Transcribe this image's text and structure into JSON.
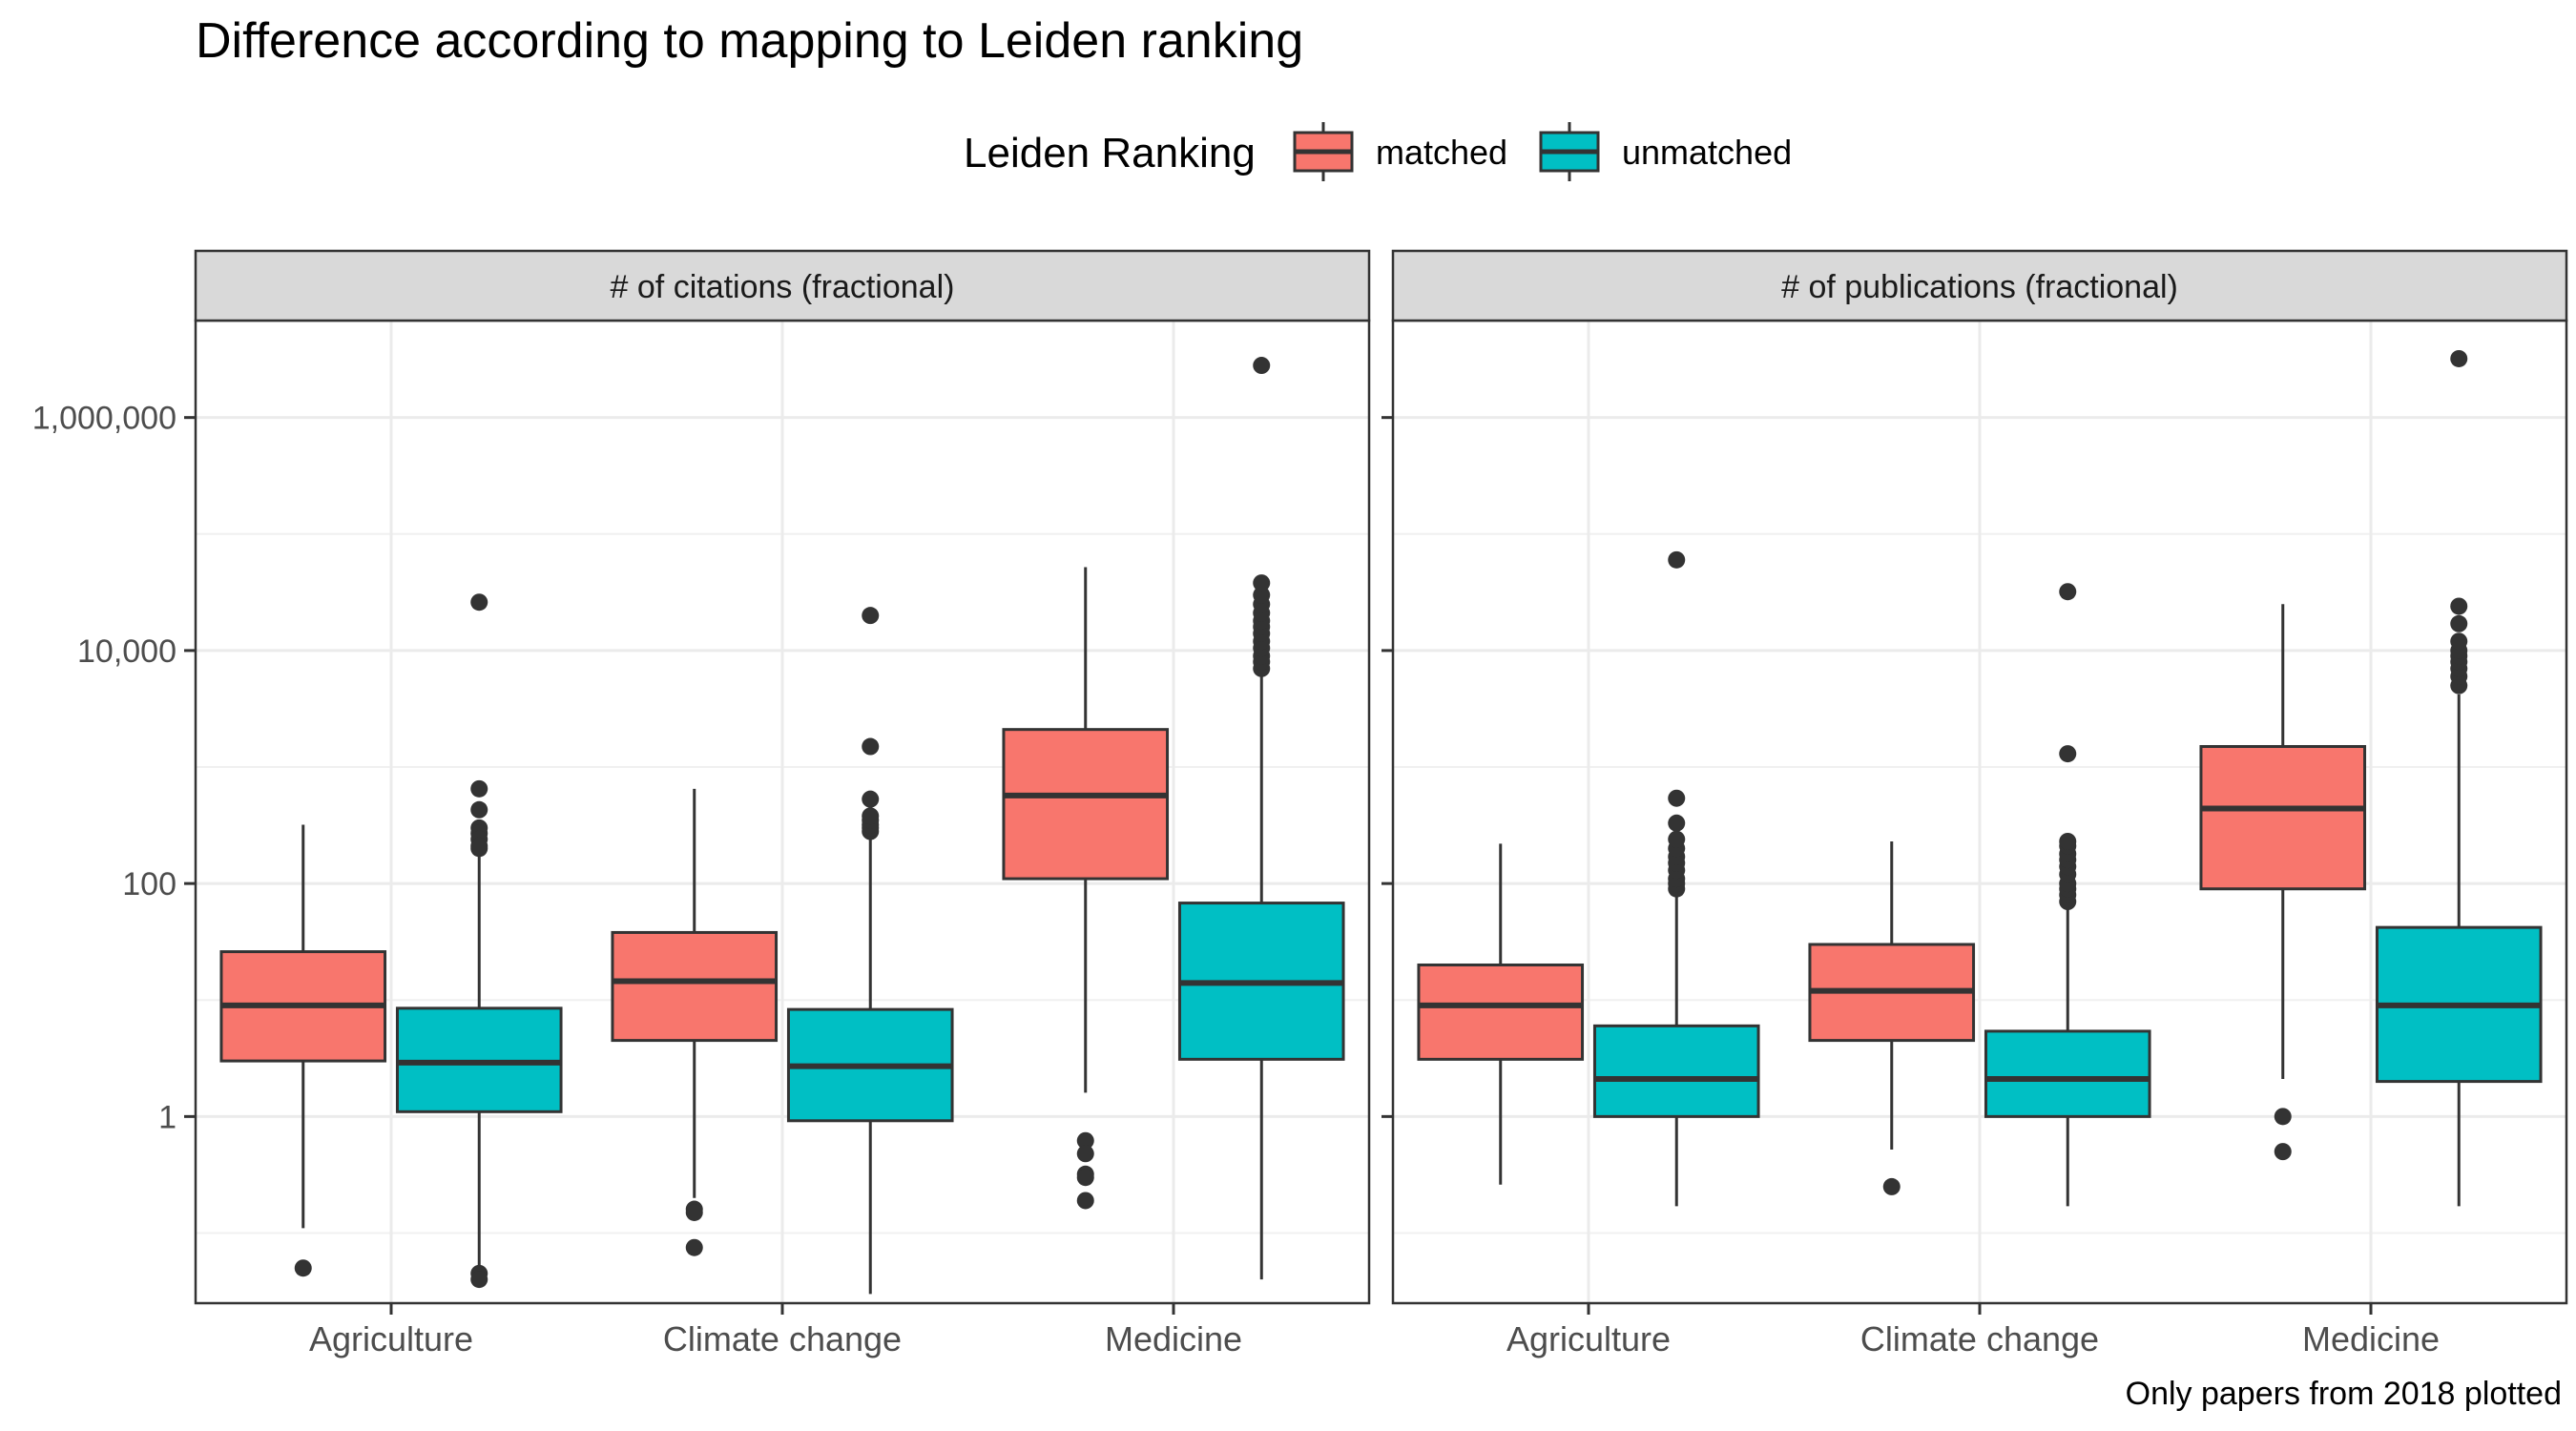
{
  "title": "Difference according to mapping to Leiden ranking",
  "caption": "Only papers from 2018 plotted",
  "legend": {
    "title": "Leiden Ranking",
    "items": [
      {
        "label": "matched",
        "color": "#F8766D"
      },
      {
        "label": "unmatched",
        "color": "#00BFC4"
      }
    ]
  },
  "chart_data": {
    "type": "boxplot",
    "y_scale": "log10",
    "y_ticks": [
      1,
      100,
      10000,
      1000000
    ],
    "y_tick_labels": [
      "1",
      "100",
      "10,000",
      "1,000,000"
    ],
    "y_range": [
      0.025,
      6800000
    ],
    "categories": [
      "Agriculture",
      "Climate change",
      "Medicine"
    ],
    "grid": true,
    "legend_position": "top",
    "facets": [
      {
        "title": "# of citations (fractional)",
        "series": [
          {
            "name": "matched",
            "boxes": [
              {
                "category": "Agriculture",
                "low": 0.11,
                "q1": 3,
                "median": 9,
                "q3": 26,
                "high": 320,
                "outliers": [
                  0.05
                ]
              },
              {
                "category": "Climate change",
                "low": 0.2,
                "q1": 4.5,
                "median": 14.5,
                "q3": 38,
                "high": 650,
                "outliers": [
                  0.16,
                  0.15,
                  0.075
                ]
              },
              {
                "category": "Medicine",
                "low": 1.6,
                "q1": 110,
                "median": 570,
                "q3": 2100,
                "high": 52000,
                "outliers": [
                  0.62,
                  0.48,
                  0.32,
                  0.3,
                  0.19
                ]
              }
            ]
          },
          {
            "name": "unmatched",
            "boxes": [
              {
                "category": "Agriculture",
                "low": 0.04,
                "q1": 1.1,
                "median": 2.9,
                "q3": 8.5,
                "high": 190,
                "outliers": [
                  650,
                  430,
                  300,
                  270,
                  240,
                  210,
                  200,
                  26000,
                  0.045,
                  0.04
                ]
              },
              {
                "category": "Climate change",
                "low": 0.03,
                "q1": 0.92,
                "median": 2.7,
                "q3": 8.3,
                "high": 240,
                "outliers": [
                  280,
                  300,
                  320,
                  350,
                  380,
                  530,
                  1500,
                  20000
                ]
              },
              {
                "category": "Medicine",
                "low": 0.04,
                "q1": 3.1,
                "median": 14,
                "q3": 68,
                "high": 6500,
                "outliers": [
                  7000,
                  8000,
                  9000,
                  10500,
                  12000,
                  14000,
                  16000,
                  18000,
                  21000,
                  25000,
                  30000,
                  38000,
                  2800000
                ]
              }
            ]
          }
        ]
      },
      {
        "title": "# of publications (fractional)",
        "series": [
          {
            "name": "matched",
            "boxes": [
              {
                "category": "Agriculture",
                "low": 0.26,
                "q1": 3.1,
                "median": 9,
                "q3": 20,
                "high": 220,
                "outliers": []
              },
              {
                "category": "Climate change",
                "low": 0.52,
                "q1": 4.5,
                "median": 12,
                "q3": 30,
                "high": 230,
                "outliers": [
                  0.25
                ]
              },
              {
                "category": "Medicine",
                "low": 2.1,
                "q1": 90,
                "median": 440,
                "q3": 1500,
                "high": 25000,
                "outliers": [
                  1,
                  0.5
                ]
              }
            ]
          },
          {
            "name": "unmatched",
            "boxes": [
              {
                "category": "Agriculture",
                "low": 0.17,
                "q1": 1,
                "median": 2.1,
                "q3": 6,
                "high": 85,
                "outliers": [
                  90,
                  100,
                  110,
                  130,
                  150,
                  170,
                  200,
                  240,
                  330,
                  540,
                  60000
                ]
              },
              {
                "category": "Climate change",
                "low": 0.17,
                "q1": 1,
                "median": 2.1,
                "q3": 5.4,
                "high": 65,
                "outliers": [
                  70,
                  80,
                  90,
                  100,
                  120,
                  140,
                  160,
                  180,
                  210,
                  230,
                  1300,
                  32000
                ]
              },
              {
                "category": "Medicine",
                "low": 0.17,
                "q1": 2,
                "median": 9,
                "q3": 42,
                "high": 4200,
                "outliers": [
                  5000,
                  6000,
                  7000,
                  8000,
                  9000,
                  10000,
                  12000,
                  17000,
                  24000,
                  3200000
                ]
              }
            ]
          }
        ]
      }
    ]
  }
}
